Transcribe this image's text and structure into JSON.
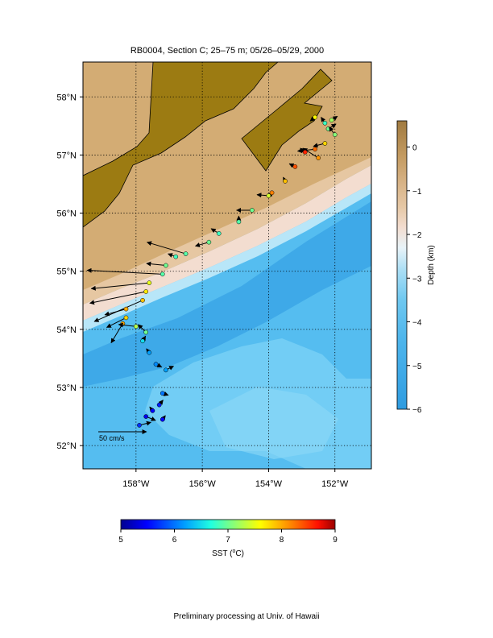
{
  "title": "RB0004, Section C; 25–75 m; 05/26–05/29, 2000",
  "footer": "Preliminary processing at Univ. of Hawaii",
  "map": {
    "lon_range": [
      -159.6,
      -150.9
    ],
    "lat_range": [
      51.6,
      58.6
    ],
    "lon_ticks": [
      {
        "value": -158,
        "label": "158°W"
      },
      {
        "value": -156,
        "label": "156°W"
      },
      {
        "value": -154,
        "label": "154°W"
      },
      {
        "value": -152,
        "label": "152°W"
      }
    ],
    "lat_ticks": [
      {
        "value": 52,
        "label": "52°N"
      },
      {
        "value": 53,
        "label": "53°N"
      },
      {
        "value": 54,
        "label": "54°N"
      },
      {
        "value": 55,
        "label": "55°N"
      },
      {
        "value": 56,
        "label": "56°N"
      },
      {
        "value": 57,
        "label": "57°N"
      },
      {
        "value": 58,
        "label": "58°N"
      }
    ],
    "grid": "dotted",
    "colors": {
      "land": "#9c7b12",
      "shelf": "#d2aa72",
      "slope": "#f2d7c4",
      "ocean": "#5ec3f0",
      "deep": "#3aa8e8"
    }
  },
  "scale_arrow": {
    "label": "50 cm/s",
    "color": "#cc00cc"
  },
  "depth_colorbar": {
    "label": "Depth (km)",
    "range": [
      -6,
      0.6
    ],
    "ticks": [
      {
        "value": 0,
        "label": "0"
      },
      {
        "value": -1,
        "label": "−1"
      },
      {
        "value": -2,
        "label": "−2"
      },
      {
        "value": -3,
        "label": "−3"
      },
      {
        "value": -4,
        "label": "−4"
      },
      {
        "value": -5,
        "label": "−5"
      },
      {
        "value": -6,
        "label": "−6"
      }
    ]
  },
  "sst_colorbar": {
    "label_prefix": "SST (",
    "label_unit": "o",
    "label_suffix": "C)",
    "range": [
      5,
      9
    ],
    "ticks": [
      {
        "value": 5,
        "label": "5"
      },
      {
        "value": 6,
        "label": "6"
      },
      {
        "value": 7,
        "label": "7"
      },
      {
        "value": 8,
        "label": "8"
      },
      {
        "value": 9,
        "label": "9"
      }
    ]
  },
  "chart_data": {
    "type": "scatter",
    "title": "RB0004, Section C; 25–75 m; 05/26–05/29, 2000",
    "xlabel": "",
    "ylabel": "",
    "xlim": [
      -159.6,
      -150.9
    ],
    "ylim": [
      51.6,
      58.6
    ],
    "grid": true,
    "vector_scale": "50 cm/s",
    "color_variable": "SST (°C)",
    "series": [
      {
        "points": [
          {
            "lon": -152.1,
            "lat": 57.6,
            "u": 6,
            "v": 4,
            "sst": 7.2
          },
          {
            "lon": -152.3,
            "lat": 57.55,
            "u": -4,
            "v": 6,
            "sst": 6.8
          },
          {
            "lon": -152.2,
            "lat": 57.45,
            "u": 8,
            "v": 5,
            "sst": 7.0
          },
          {
            "lon": -152.6,
            "lat": 57.65,
            "u": -5,
            "v": -4,
            "sst": 7.6
          },
          {
            "lon": -152.0,
            "lat": 57.35,
            "u": -6,
            "v": 8,
            "sst": 7.1
          },
          {
            "lon": -152.3,
            "lat": 57.2,
            "u": -12,
            "v": -3,
            "sst": 7.8
          },
          {
            "lon": -152.6,
            "lat": 57.1,
            "u": -18,
            "v": -2,
            "sst": 8.3
          },
          {
            "lon": -152.5,
            "lat": 56.95,
            "u": -16,
            "v": 10,
            "sst": 8.1
          },
          {
            "lon": -152.9,
            "lat": 57.05,
            "u": -5,
            "v": 4,
            "sst": 8.6
          },
          {
            "lon": -153.2,
            "lat": 56.8,
            "u": -6,
            "v": 3,
            "sst": 8.4
          },
          {
            "lon": -153.5,
            "lat": 56.55,
            "u": -2,
            "v": 4,
            "sst": 7.9
          },
          {
            "lon": -153.9,
            "lat": 56.35,
            "u": -4,
            "v": -5,
            "sst": 8.2
          },
          {
            "lon": -154.0,
            "lat": 56.3,
            "u": -12,
            "v": 1,
            "sst": 7.4
          },
          {
            "lon": -154.5,
            "lat": 56.05,
            "u": -16,
            "v": 0,
            "sst": 7.0
          },
          {
            "lon": -154.9,
            "lat": 55.85,
            "u": 0,
            "v": 6,
            "sst": 6.9
          },
          {
            "lon": -155.5,
            "lat": 55.65,
            "u": -8,
            "v": 5,
            "sst": 6.8
          },
          {
            "lon": -155.8,
            "lat": 55.5,
            "u": -14,
            "v": -4,
            "sst": 7.0
          },
          {
            "lon": -156.5,
            "lat": 55.3,
            "u": -40,
            "v": 12,
            "sst": 6.9
          },
          {
            "lon": -156.8,
            "lat": 55.25,
            "u": -8,
            "v": 3,
            "sst": 6.8
          },
          {
            "lon": -157.1,
            "lat": 55.1,
            "u": -20,
            "v": 2,
            "sst": 7.0
          },
          {
            "lon": -157.2,
            "lat": 54.95,
            "u": -78,
            "v": 4,
            "sst": 6.9
          },
          {
            "lon": -157.6,
            "lat": 54.8,
            "u": -60,
            "v": -6,
            "sst": 7.5
          },
          {
            "lon": -157.7,
            "lat": 54.65,
            "u": -58,
            "v": -12,
            "sst": 7.7
          },
          {
            "lon": -157.8,
            "lat": 54.5,
            "u": -50,
            "v": -22,
            "sst": 7.9
          },
          {
            "lon": -158.3,
            "lat": 54.35,
            "u": -22,
            "v": -6,
            "sst": 8.0
          },
          {
            "lon": -158.3,
            "lat": 54.2,
            "u": -20,
            "v": -10,
            "sst": 7.8
          },
          {
            "lon": -158.4,
            "lat": 54.1,
            "u": -12,
            "v": -20,
            "sst": 8.0
          },
          {
            "lon": -158.0,
            "lat": 54.05,
            "u": -18,
            "v": 2,
            "sst": 7.3
          },
          {
            "lon": -157.7,
            "lat": 53.95,
            "u": -8,
            "v": 8,
            "sst": 7.0
          },
          {
            "lon": -157.8,
            "lat": 53.8,
            "u": 3,
            "v": 5,
            "sst": 6.5
          },
          {
            "lon": -157.6,
            "lat": 53.6,
            "u": -3,
            "v": 4,
            "sst": 6.2
          },
          {
            "lon": -157.4,
            "lat": 53.4,
            "u": 6,
            "v": -3,
            "sst": 6.1
          },
          {
            "lon": -157.1,
            "lat": 53.3,
            "u": 8,
            "v": 4,
            "sst": 6.2
          },
          {
            "lon": -157.2,
            "lat": 52.9,
            "u": 6,
            "v": -2,
            "sst": 6.0
          },
          {
            "lon": -157.3,
            "lat": 52.7,
            "u": 4,
            "v": 5,
            "sst": 5.6
          },
          {
            "lon": -157.5,
            "lat": 52.6,
            "u": -3,
            "v": 4,
            "sst": 5.5
          },
          {
            "lon": -157.7,
            "lat": 52.5,
            "u": 10,
            "v": -4,
            "sst": 5.4
          },
          {
            "lon": -157.9,
            "lat": 52.35,
            "u": 12,
            "v": 3,
            "sst": 5.7
          },
          {
            "lon": -157.2,
            "lat": 52.45,
            "u": 3,
            "v": 4,
            "sst": 5.5
          }
        ]
      }
    ]
  }
}
